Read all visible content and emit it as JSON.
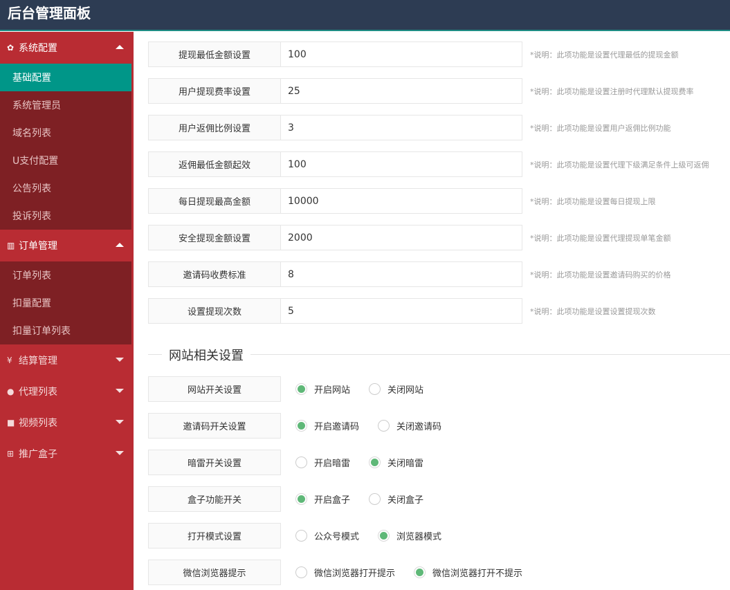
{
  "header": {
    "title": "后台管理面板"
  },
  "sidebar": {
    "groups": [
      {
        "icon": "gear-icon",
        "glyph": "✿",
        "label": "系统配置",
        "expanded": true,
        "items": [
          {
            "label": "基础配置",
            "active": true
          },
          {
            "label": "系统管理员"
          },
          {
            "label": "域名列表"
          },
          {
            "label": "U支付配置"
          },
          {
            "label": "公告列表"
          },
          {
            "label": "投诉列表"
          }
        ]
      },
      {
        "icon": "bar-chart-icon",
        "glyph": "▥",
        "label": "订单管理",
        "expanded": true,
        "items": [
          {
            "label": "订单列表"
          },
          {
            "label": "扣量配置"
          },
          {
            "label": "扣量订单列表"
          }
        ]
      },
      {
        "icon": "yen-icon",
        "glyph": "¥",
        "label": "结算管理",
        "expanded": false
      },
      {
        "icon": "user-icon",
        "glyph": "●",
        "label": "代理列表",
        "expanded": false
      },
      {
        "icon": "video-icon",
        "glyph": "■",
        "label": "视频列表",
        "expanded": false
      },
      {
        "icon": "table-icon",
        "glyph": "⊞",
        "label": "推广盒子",
        "expanded": false
      }
    ]
  },
  "fields": [
    {
      "label": "提现最低金额设置",
      "value": "100",
      "hint": "*说明：此项功能是设置代理最低的提现金额"
    },
    {
      "label": "用户提现费率设置",
      "value": "25",
      "hint": "*说明：此项功能是设置注册时代理默认提现费率"
    },
    {
      "label": "用户返佣比例设置",
      "value": "3",
      "hint": "*说明：此项功能是设置用户返佣比例功能"
    },
    {
      "label": "返佣最低金额起效",
      "value": "100",
      "hint": "*说明：此项功能是设置代理下级满足条件上级可返佣"
    },
    {
      "label": "每日提现最高金额",
      "value": "10000",
      "hint": "*说明：此项功能是设置每日提现上限"
    },
    {
      "label": "安全提现金额设置",
      "value": "2000",
      "hint": "*说明：此项功能是设置代理提现单笔金额"
    },
    {
      "label": "邀请码收费标准",
      "value": "8",
      "hint": "*说明：此项功能是设置邀请码购买的价格"
    },
    {
      "label": "设置提现次数",
      "value": "5",
      "hint": "*说明：此项功能是设置设置提现次数"
    }
  ],
  "section": {
    "title": "网站相关设置"
  },
  "switches": [
    {
      "label": "网站开关设置",
      "options": [
        "开启网站",
        "关闭网站"
      ],
      "selected": 0
    },
    {
      "label": "邀请码开关设置",
      "options": [
        "开启邀请码",
        "关闭邀请码"
      ],
      "selected": 0
    },
    {
      "label": "暗雷开关设置",
      "options": [
        "开启暗雷",
        "关闭暗雷"
      ],
      "selected": 1
    },
    {
      "label": "盒子功能开关",
      "options": [
        "开启盒子",
        "关闭盒子"
      ],
      "selected": 0
    },
    {
      "label": "打开模式设置",
      "options": [
        "公众号模式",
        "浏览器模式"
      ],
      "selected": 1
    },
    {
      "label": "微信浏览器提示",
      "options": [
        "微信浏览器打开提示",
        "微信浏览器打开不提示"
      ],
      "selected": 1
    }
  ],
  "colors": {
    "header": "#2d3c53",
    "sidebar": "#b92c33",
    "submenu": "#7e2024",
    "active": "#009688",
    "radio": "#5fb878"
  }
}
